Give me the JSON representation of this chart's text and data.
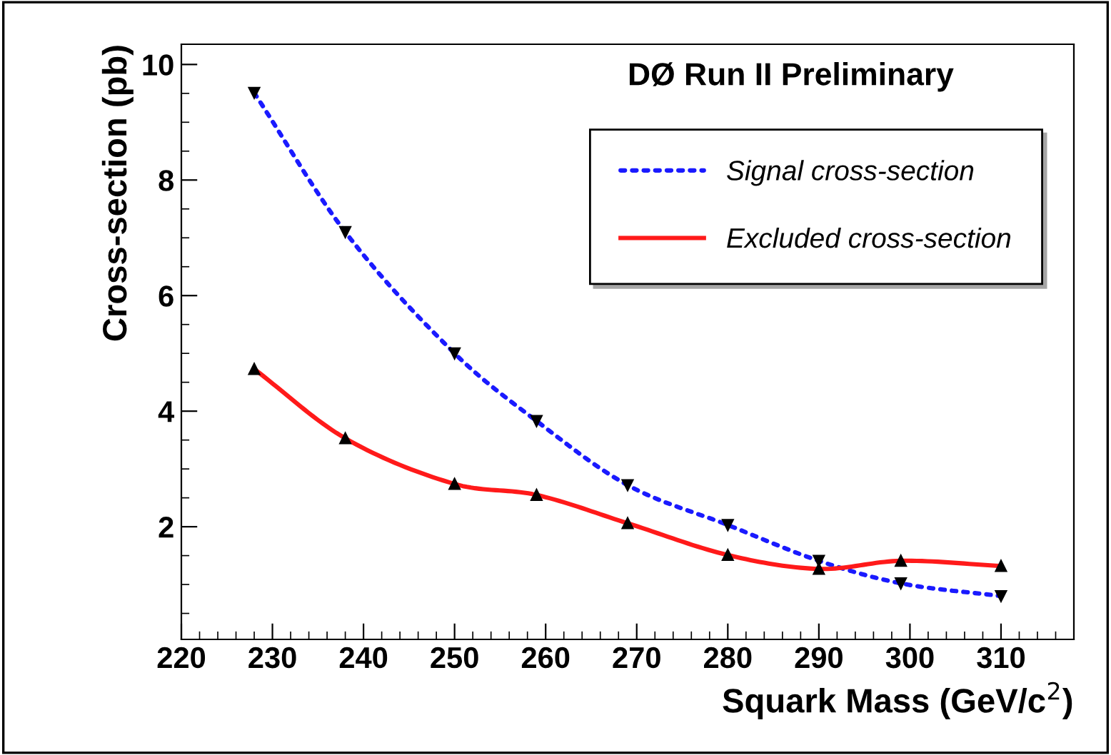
{
  "chart_data": {
    "type": "line",
    "title": "DØ Run II Preliminary",
    "xlabel": "Squark Mass (GeV/c$^{2}$)",
    "ylabel": "Cross-section (pb)",
    "xlim": [
      220,
      318
    ],
    "xticks": [
      220,
      230,
      240,
      250,
      260,
      270,
      280,
      290,
      300,
      310
    ],
    "ylim": [
      0.05,
      10.35
    ],
    "yticks": [
      2,
      4,
      6,
      8,
      10
    ],
    "legend": "top right",
    "grid": false,
    "series": [
      {
        "name": "Signal cross-section",
        "color": "#1a1aff",
        "line_style": "dotted",
        "marker": "triangle_down",
        "x": [
          228,
          238,
          250,
          259,
          269,
          280,
          290,
          299,
          310
        ],
        "values": [
          9.51,
          7.1,
          5.0,
          3.83,
          2.72,
          2.03,
          1.41,
          1.02,
          0.8
        ]
      },
      {
        "name": "Excluded cross-section",
        "color": "#ff1a1a",
        "line_style": "solid",
        "marker": "triangle",
        "x": [
          228,
          238,
          250,
          259,
          269,
          280,
          290,
          299,
          310
        ],
        "values": [
          4.73,
          3.53,
          2.74,
          2.55,
          2.06,
          1.51,
          1.27,
          1.41,
          1.32
        ]
      }
    ]
  }
}
